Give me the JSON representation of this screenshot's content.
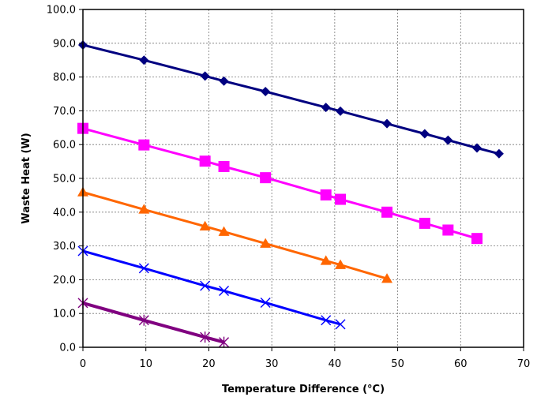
{
  "chart_data": {
    "type": "line",
    "title": "",
    "xlabel": "Temperature Difference (°C)",
    "ylabel": "Waste Heat (W)",
    "xlim": [
      0,
      70
    ],
    "ylim": [
      0,
      100
    ],
    "x_ticks": [
      0,
      10,
      20,
      30,
      40,
      50,
      60,
      70
    ],
    "y_ticks": [
      0,
      10,
      20,
      30,
      40,
      50,
      60,
      70,
      80,
      90,
      100
    ],
    "x_tick_labels": [
      "0",
      "10",
      "20",
      "30",
      "40",
      "50",
      "60",
      "70"
    ],
    "y_tick_labels": [
      "0.0",
      "10.0",
      "20.0",
      "30.0",
      "40.0",
      "50.0",
      "60.0",
      "70.0",
      "80.0",
      "90.0",
      "100.0"
    ],
    "grid": true,
    "grid_style": "dashed",
    "legend": "none",
    "series": [
      {
        "color": "#000080",
        "marker": "diamond",
        "x": [
          0,
          9.7,
          19.4,
          22.4,
          29.0,
          38.6,
          40.9,
          48.3,
          54.3,
          58.0,
          62.6,
          66.1
        ],
        "y": [
          89.5,
          85.0,
          80.3,
          78.8,
          75.7,
          71.0,
          69.9,
          66.2,
          63.2,
          61.3,
          59.0,
          57.3
        ]
      },
      {
        "color": "#FF00FF",
        "marker": "square",
        "x": [
          0,
          9.7,
          19.4,
          22.4,
          29.0,
          38.6,
          40.9,
          48.3,
          54.3,
          58.0,
          62.6
        ],
        "y": [
          64.8,
          59.9,
          55.1,
          53.5,
          50.2,
          45.1,
          43.8,
          40.0,
          36.7,
          34.7,
          32.2
        ]
      },
      {
        "color": "#FF6600",
        "marker": "triangle",
        "x": [
          0,
          9.7,
          19.4,
          22.4,
          29.0,
          38.6,
          40.9,
          48.3
        ],
        "y": [
          45.9,
          40.8,
          35.8,
          34.2,
          30.7,
          25.6,
          24.4,
          20.3
        ]
      },
      {
        "color": "#0000FF",
        "marker": "x",
        "x": [
          0,
          9.7,
          19.4,
          22.4,
          29.0,
          38.6,
          40.9
        ],
        "y": [
          28.5,
          23.4,
          18.2,
          16.7,
          13.2,
          8.0,
          6.8
        ]
      },
      {
        "color": "#800080",
        "marker": "star",
        "x": [
          0,
          9.7,
          19.4,
          22.4
        ],
        "y": [
          13.1,
          8.0,
          3.0,
          1.5
        ]
      }
    ]
  }
}
